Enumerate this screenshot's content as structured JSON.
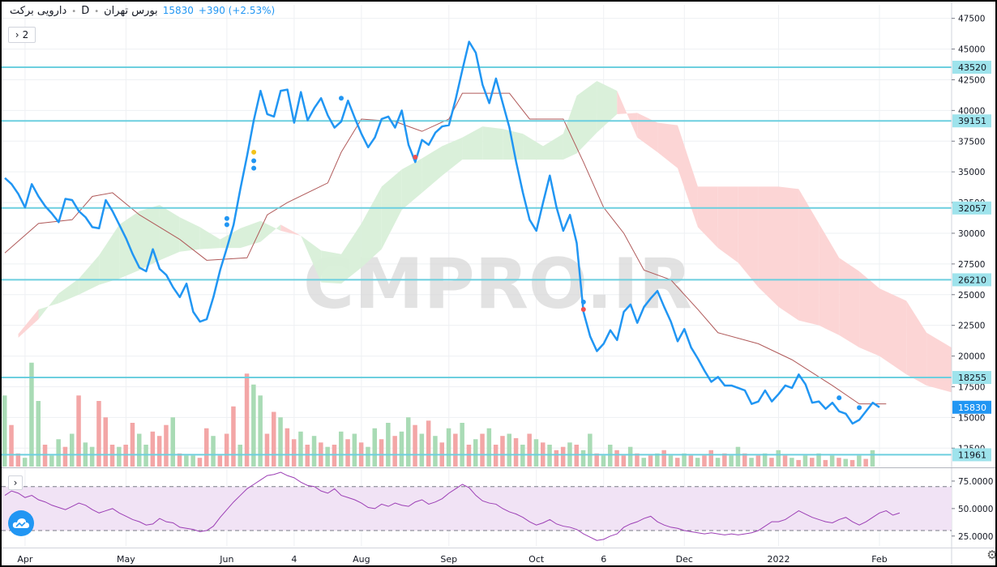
{
  "header": {
    "symbol": "دارویی برکت",
    "timeframe": "D",
    "exchange": "بورس تهران",
    "last_price": "15830",
    "change": "+390 (+2.53%)",
    "indicator_count": "2"
  },
  "watermark": "CMPRO.IR",
  "colors": {
    "price_line": "#2196f3",
    "kijun_line": "#b05a5a",
    "kumo_bull": "#d8efd8",
    "kumo_bear": "#fcd3d3",
    "hlines": "#6dcfdf",
    "volume_up": "#a9dbb5",
    "volume_down": "#f3a6a6",
    "rsi_line": "#9c3fb5",
    "rsi_band": "#f1e3f5"
  },
  "chart_data": [
    {
      "type": "line",
      "panel": "price",
      "x_axis_labels": [
        {
          "label": "Apr",
          "index": 3
        },
        {
          "label": "May",
          "index": 18
        },
        {
          "label": "Jun",
          "index": 33
        },
        {
          "label": "4",
          "index": 43
        },
        {
          "label": "Aug",
          "index": 53
        },
        {
          "label": "Sep",
          "index": 66
        },
        {
          "label": "Oct",
          "index": 79
        },
        {
          "label": "6",
          "index": 89
        },
        {
          "label": "Dec",
          "index": 101
        },
        {
          "label": "2022",
          "index": 115
        },
        {
          "label": "Feb",
          "index": 130
        }
      ],
      "y_ticks": [
        12500,
        15000,
        17500,
        20000,
        22500,
        25000,
        27500,
        30000,
        32500,
        35000,
        37500,
        40000,
        42500,
        45000,
        47500
      ],
      "ylim": [
        11000,
        48600
      ],
      "price_scale_labels": [
        "43520",
        "39151",
        "32057",
        "26210",
        "18255",
        "15830",
        "11961"
      ],
      "horizontal_levels": [
        43520,
        39151,
        32057,
        26210,
        18255,
        11961
      ],
      "last_price": 15830,
      "series": [
        {
          "values": [
            34500,
            34000,
            33200,
            32100,
            34000,
            33000,
            32200,
            31600,
            30900,
            32800,
            32700,
            31800,
            31300,
            30500,
            30400,
            32700,
            31800,
            30700,
            29600,
            28300,
            27200,
            26900,
            28700,
            27100,
            26600,
            25600,
            24800,
            25900,
            23600,
            22800,
            23000,
            24800,
            27000,
            28800,
            30700,
            33600,
            36300,
            39200,
            41600,
            39700,
            39500,
            41600,
            41700,
            39000,
            41500,
            39200,
            40200,
            41000,
            39600,
            38600,
            39100,
            40800,
            39400,
            38100,
            37000,
            37800,
            39300,
            39500,
            38600,
            40000,
            37200,
            35800,
            37600,
            37200,
            38200,
            38700,
            38800,
            40900,
            43300,
            45600,
            44700,
            42100,
            40600,
            42600,
            40600,
            38600,
            35800,
            33300,
            31100,
            30200,
            32500,
            34700,
            32100,
            30200,
            31500,
            29200,
            23600,
            21600,
            20400,
            21000,
            22100,
            21300,
            23600,
            24200,
            22700,
            24000,
            24700,
            25300,
            24000,
            22800,
            21200,
            22200,
            20700,
            19800,
            18800,
            17900,
            18300,
            17600,
            17600,
            17400,
            17200,
            16100,
            16300,
            17200,
            16300,
            16900,
            17600,
            17400,
            18500,
            17700,
            16200,
            16300,
            15700,
            16200,
            15500,
            15300,
            14500,
            14800,
            15500,
            16200,
            15830
          ],
          "markers": [
            {
              "i": 33,
              "v": 31200,
              "c": "#2196f3"
            },
            {
              "i": 33,
              "v": 30700,
              "c": "#2196f3"
            },
            {
              "i": 37,
              "v": 35300,
              "c": "#2196f3"
            },
            {
              "i": 37,
              "v": 35900,
              "c": "#2196f3"
            },
            {
              "i": 37,
              "v": 36600,
              "c": "#f2c21b"
            },
            {
              "i": 50,
              "v": 41000,
              "c": "#2196f3"
            },
            {
              "i": 61,
              "v": 36200,
              "c": "#f05151"
            },
            {
              "i": 86,
              "v": 24400,
              "c": "#2196f3"
            },
            {
              "i": 86,
              "v": 23800,
              "c": "#f05151"
            },
            {
              "i": 124,
              "v": 16600,
              "c": "#2196f3"
            },
            {
              "i": 127,
              "v": 15800,
              "c": "#2196f3"
            }
          ]
        }
      ]
    },
    {
      "type": "line",
      "panel": "rsi",
      "ylim": [
        16,
        86
      ],
      "y_ticks": [
        "75.0000",
        "50.0000",
        "25.0000"
      ],
      "y_tick_values": [
        75,
        50,
        25
      ],
      "band": [
        30,
        70
      ],
      "values": [
        62,
        66,
        64,
        60,
        62,
        58,
        56,
        53,
        51,
        49,
        52,
        55,
        53,
        49,
        46,
        48,
        50,
        46,
        43,
        40,
        38,
        35,
        36,
        41,
        38,
        37,
        33,
        32,
        31,
        29,
        30,
        34,
        42,
        49,
        56,
        62,
        68,
        72,
        76,
        80,
        81,
        83,
        80,
        78,
        74,
        71,
        70,
        66,
        64,
        68,
        62,
        60,
        58,
        55,
        51,
        50,
        54,
        52,
        55,
        53,
        52,
        56,
        58,
        54,
        56,
        59,
        64,
        68,
        72,
        69,
        62,
        57,
        55,
        54,
        50,
        47,
        45,
        42,
        38,
        35,
        37,
        40,
        36,
        34,
        33,
        31,
        27,
        24,
        21,
        22,
        25,
        27,
        33,
        36,
        38,
        41,
        43,
        38,
        35,
        33,
        32,
        30,
        29,
        28,
        27,
        28,
        27,
        26,
        27,
        26,
        27,
        28,
        30,
        34,
        38,
        38,
        40,
        44,
        48,
        45,
        42,
        40,
        38,
        37,
        40,
        42,
        38,
        35,
        38,
        42,
        46,
        48,
        44,
        46
      ]
    }
  ],
  "kijun": [
    {
      "i": 0,
      "v": 28400
    },
    {
      "i": 5,
      "v": 30800
    },
    {
      "i": 10,
      "v": 31100
    },
    {
      "i": 13,
      "v": 33000
    },
    {
      "i": 16,
      "v": 33300
    },
    {
      "i": 20,
      "v": 31500
    },
    {
      "i": 26,
      "v": 29500
    },
    {
      "i": 30,
      "v": 27800
    },
    {
      "i": 36,
      "v": 28000
    },
    {
      "i": 39,
      "v": 31500
    },
    {
      "i": 42,
      "v": 32500
    },
    {
      "i": 48,
      "v": 34100
    },
    {
      "i": 50,
      "v": 36600
    },
    {
      "i": 53,
      "v": 39300
    },
    {
      "i": 58,
      "v": 39100
    },
    {
      "i": 62,
      "v": 38300
    },
    {
      "i": 66,
      "v": 39300
    },
    {
      "i": 68,
      "v": 41400
    },
    {
      "i": 75,
      "v": 41400
    },
    {
      "i": 78,
      "v": 39300
    },
    {
      "i": 83,
      "v": 39300
    },
    {
      "i": 86,
      "v": 35800
    },
    {
      "i": 89,
      "v": 32100
    },
    {
      "i": 92,
      "v": 30000
    },
    {
      "i": 95,
      "v": 27000
    },
    {
      "i": 99,
      "v": 26200
    },
    {
      "i": 103,
      "v": 23800
    },
    {
      "i": 106,
      "v": 21900
    },
    {
      "i": 112,
      "v": 21000
    },
    {
      "i": 117,
      "v": 19700
    },
    {
      "i": 123,
      "v": 17600
    },
    {
      "i": 127,
      "v": 16100
    },
    {
      "i": 131,
      "v": 16100
    }
  ],
  "kumo": [
    {
      "i": 2,
      "a": 21500,
      "b": 21800
    },
    {
      "i": 5,
      "a": 23000,
      "b": 23800
    },
    {
      "i": 8,
      "a": 25100,
      "b": 24300
    },
    {
      "i": 11,
      "a": 26300,
      "b": 25000
    },
    {
      "i": 14,
      "a": 28200,
      "b": 25800
    },
    {
      "i": 17,
      "a": 30700,
      "b": 26300
    },
    {
      "i": 20,
      "a": 31800,
      "b": 27000
    },
    {
      "i": 23,
      "a": 32300,
      "b": 27800
    },
    {
      "i": 26,
      "a": 31300,
      "b": 28500
    },
    {
      "i": 29,
      "a": 30500,
      "b": 28700
    },
    {
      "i": 32,
      "a": 29500,
      "b": 28800
    },
    {
      "i": 35,
      "a": 30400,
      "b": 28800
    },
    {
      "i": 38,
      "a": 31000,
      "b": 29300
    },
    {
      "i": 41,
      "a": 30200,
      "b": 30700
    },
    {
      "i": 44,
      "a": 29800,
      "b": 29800
    },
    {
      "i": 47,
      "a": 28600,
      "b": 26000
    },
    {
      "i": 50,
      "a": 28300,
      "b": 25900
    },
    {
      "i": 53,
      "a": 30800,
      "b": 27200
    },
    {
      "i": 56,
      "a": 33800,
      "b": 28700
    },
    {
      "i": 59,
      "a": 35200,
      "b": 31900
    },
    {
      "i": 62,
      "a": 36100,
      "b": 33300
    },
    {
      "i": 65,
      "a": 37100,
      "b": 34700
    },
    {
      "i": 68,
      "a": 37800,
      "b": 36000
    },
    {
      "i": 71,
      "a": 38700,
      "b": 36000
    },
    {
      "i": 74,
      "a": 38500,
      "b": 36000
    },
    {
      "i": 77,
      "a": 38100,
      "b": 36000
    },
    {
      "i": 80,
      "a": 37100,
      "b": 36000
    },
    {
      "i": 83,
      "a": 38100,
      "b": 36000
    },
    {
      "i": 85,
      "a": 41200,
      "b": 36500
    },
    {
      "i": 88,
      "a": 42400,
      "b": 38200
    },
    {
      "i": 91,
      "a": 41600,
      "b": 39700
    },
    {
      "i": 94,
      "a": 37800,
      "b": 39800
    },
    {
      "i": 97,
      "a": 36600,
      "b": 39000
    },
    {
      "i": 100,
      "a": 35300,
      "b": 38800
    },
    {
      "i": 103,
      "a": 30500,
      "b": 33800
    },
    {
      "i": 106,
      "a": 28800,
      "b": 33800
    },
    {
      "i": 109,
      "a": 27600,
      "b": 33800
    },
    {
      "i": 112,
      "a": 25600,
      "b": 33800
    },
    {
      "i": 115,
      "a": 24000,
      "b": 33800
    },
    {
      "i": 118,
      "a": 22900,
      "b": 33600
    },
    {
      "i": 121,
      "a": 22500,
      "b": 30800
    },
    {
      "i": 124,
      "a": 21700,
      "b": 28000
    },
    {
      "i": 127,
      "a": 20700,
      "b": 26900
    },
    {
      "i": 130,
      "a": 20000,
      "b": 25500
    },
    {
      "i": 134,
      "a": 18500,
      "b": 24500
    },
    {
      "i": 137,
      "a": 17600,
      "b": 21900
    },
    {
      "i": 141,
      "a": 17000,
      "b": 20600
    }
  ],
  "volume": [
    {
      "v": 0.65,
      "up": true
    },
    {
      "v": 0.38,
      "up": false
    },
    {
      "v": 0.12,
      "up": false
    },
    {
      "v": 0.08,
      "up": true
    },
    {
      "v": 0.95,
      "up": true
    },
    {
      "v": 0.6,
      "up": true
    },
    {
      "v": 0.2,
      "up": false
    },
    {
      "v": 0.1,
      "up": true
    },
    {
      "v": 0.25,
      "up": true
    },
    {
      "v": 0.18,
      "up": false
    },
    {
      "v": 0.3,
      "up": true
    },
    {
      "v": 0.65,
      "up": false
    },
    {
      "v": 0.22,
      "up": true
    },
    {
      "v": 0.18,
      "up": true
    },
    {
      "v": 0.6,
      "up": false
    },
    {
      "v": 0.45,
      "up": false
    },
    {
      "v": 0.2,
      "up": false
    },
    {
      "v": 0.18,
      "up": true
    },
    {
      "v": 0.2,
      "up": false
    },
    {
      "v": 0.4,
      "up": false
    },
    {
      "v": 0.3,
      "up": true
    },
    {
      "v": 0.2,
      "up": true
    },
    {
      "v": 0.32,
      "up": false
    },
    {
      "v": 0.28,
      "up": false
    },
    {
      "v": 0.38,
      "up": false
    },
    {
      "v": 0.45,
      "up": true
    },
    {
      "v": 0.12,
      "up": false
    },
    {
      "v": 0.1,
      "up": true
    },
    {
      "v": 0.1,
      "up": true
    },
    {
      "v": 0.08,
      "up": false
    },
    {
      "v": 0.35,
      "up": false
    },
    {
      "v": 0.28,
      "up": true
    },
    {
      "v": 0.1,
      "up": false
    },
    {
      "v": 0.3,
      "up": false
    },
    {
      "v": 0.55,
      "up": false
    },
    {
      "v": 0.2,
      "up": true
    },
    {
      "v": 0.85,
      "up": false
    },
    {
      "v": 0.75,
      "up": true
    },
    {
      "v": 0.65,
      "up": true
    },
    {
      "v": 0.3,
      "up": false
    },
    {
      "v": 0.5,
      "up": false
    },
    {
      "v": 0.45,
      "up": true
    },
    {
      "v": 0.35,
      "up": false
    },
    {
      "v": 0.25,
      "up": false
    },
    {
      "v": 0.32,
      "up": true
    },
    {
      "v": 0.2,
      "up": false
    },
    {
      "v": 0.28,
      "up": true
    },
    {
      "v": 0.22,
      "up": false
    },
    {
      "v": 0.18,
      "up": true
    },
    {
      "v": 0.2,
      "up": false
    },
    {
      "v": 0.32,
      "up": true
    },
    {
      "v": 0.25,
      "up": false
    },
    {
      "v": 0.3,
      "up": true
    },
    {
      "v": 0.22,
      "up": false
    },
    {
      "v": 0.18,
      "up": true
    },
    {
      "v": 0.35,
      "up": true
    },
    {
      "v": 0.25,
      "up": false
    },
    {
      "v": 0.4,
      "up": true
    },
    {
      "v": 0.28,
      "up": false
    },
    {
      "v": 0.32,
      "up": true
    },
    {
      "v": 0.45,
      "up": true
    },
    {
      "v": 0.38,
      "up": false
    },
    {
      "v": 0.3,
      "up": true
    },
    {
      "v": 0.42,
      "up": false
    },
    {
      "v": 0.28,
      "up": true
    },
    {
      "v": 0.22,
      "up": false
    },
    {
      "v": 0.35,
      "up": true
    },
    {
      "v": 0.3,
      "up": false
    },
    {
      "v": 0.4,
      "up": true
    },
    {
      "v": 0.2,
      "up": false
    },
    {
      "v": 0.25,
      "up": true
    },
    {
      "v": 0.3,
      "up": false
    },
    {
      "v": 0.35,
      "up": true
    },
    {
      "v": 0.2,
      "up": false
    },
    {
      "v": 0.28,
      "up": false
    },
    {
      "v": 0.3,
      "up": true
    },
    {
      "v": 0.26,
      "up": false
    },
    {
      "v": 0.2,
      "up": true
    },
    {
      "v": 0.3,
      "up": false
    },
    {
      "v": 0.25,
      "up": true
    },
    {
      "v": 0.22,
      "up": false
    },
    {
      "v": 0.2,
      "up": true
    },
    {
      "v": 0.15,
      "up": false
    },
    {
      "v": 0.18,
      "up": false
    },
    {
      "v": 0.22,
      "up": true
    },
    {
      "v": 0.2,
      "up": false
    },
    {
      "v": 0.15,
      "up": true
    },
    {
      "v": 0.3,
      "up": true
    },
    {
      "v": 0.12,
      "up": false
    },
    {
      "v": 0.1,
      "up": true
    },
    {
      "v": 0.2,
      "up": true
    },
    {
      "v": 0.15,
      "up": false
    },
    {
      "v": 0.1,
      "up": false
    },
    {
      "v": 0.18,
      "up": true
    },
    {
      "v": 0.12,
      "up": false
    },
    {
      "v": 0.08,
      "up": true
    },
    {
      "v": 0.1,
      "up": false
    },
    {
      "v": 0.12,
      "up": true
    },
    {
      "v": 0.15,
      "up": false
    },
    {
      "v": 0.1,
      "up": true
    },
    {
      "v": 0.08,
      "up": false
    },
    {
      "v": 0.12,
      "up": true
    },
    {
      "v": 0.1,
      "up": false
    },
    {
      "v": 0.08,
      "up": true
    },
    {
      "v": 0.1,
      "up": false
    },
    {
      "v": 0.15,
      "up": false
    },
    {
      "v": 0.08,
      "up": true
    },
    {
      "v": 0.12,
      "up": false
    },
    {
      "v": 0.1,
      "up": true
    },
    {
      "v": 0.18,
      "up": true
    },
    {
      "v": 0.12,
      "up": false
    },
    {
      "v": 0.08,
      "up": true
    },
    {
      "v": 0.1,
      "up": false
    },
    {
      "v": 0.12,
      "up": true
    },
    {
      "v": 0.08,
      "up": false
    },
    {
      "v": 0.15,
      "up": true
    },
    {
      "v": 0.1,
      "up": false
    },
    {
      "v": 0.08,
      "up": true
    },
    {
      "v": 0.06,
      "up": false
    },
    {
      "v": 0.1,
      "up": true
    },
    {
      "v": 0.08,
      "up": false
    },
    {
      "v": 0.12,
      "up": true
    },
    {
      "v": 0.06,
      "up": false
    },
    {
      "v": 0.1,
      "up": true
    },
    {
      "v": 0.08,
      "up": false
    },
    {
      "v": 0.07,
      "up": true
    },
    {
      "v": 0.06,
      "up": false
    },
    {
      "v": 0.1,
      "up": true
    },
    {
      "v": 0.07,
      "up": false
    },
    {
      "v": 0.15,
      "up": true
    }
  ]
}
